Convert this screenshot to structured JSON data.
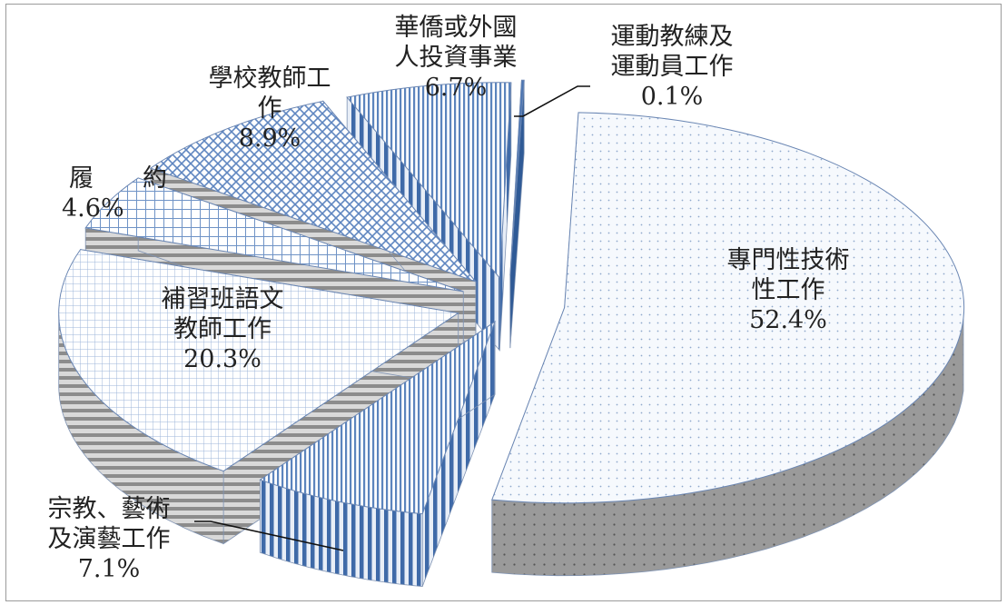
{
  "chart_data": {
    "type": "pie",
    "variant": "3d-exploded",
    "title": "",
    "legend": "none",
    "slices": [
      {
        "label_lines": [
          "專門性技術",
          "性工作"
        ],
        "value_label": "52.4%",
        "value": 52.4,
        "fill": "#f3f7fc",
        "pattern": "dots"
      },
      {
        "label_lines": [
          "宗教、藝術",
          "及演藝工作"
        ],
        "value_label": "7.1%",
        "value": 7.1,
        "fill": "#5b86bf",
        "pattern": "vertical-lines"
      },
      {
        "label_lines": [
          "補習班語文",
          "教師工作"
        ],
        "value_label": "20.3%",
        "value": 20.3,
        "fill": "#dfe9f6",
        "pattern": "fine-grid"
      },
      {
        "label_lines": [
          "履　　約"
        ],
        "value_label": "4.6%",
        "value": 4.6,
        "fill": "#bcd0ea",
        "pattern": "grid"
      },
      {
        "label_lines": [
          "學校教師工",
          "作"
        ],
        "value_label": "8.9%",
        "value": 8.9,
        "fill": "#9fbbe0",
        "pattern": "diagonal-grid"
      },
      {
        "label_lines": [
          "華僑或外國",
          "人投資事業"
        ],
        "value_label": "6.7%",
        "value": 6.7,
        "fill": "#6e93c6",
        "pattern": "vertical-lines"
      },
      {
        "label_lines": [
          "運動教練及",
          "運動員工作"
        ],
        "value_label": "0.1%",
        "value": 0.1,
        "fill": "#4c76b3",
        "pattern": "solid"
      }
    ]
  }
}
